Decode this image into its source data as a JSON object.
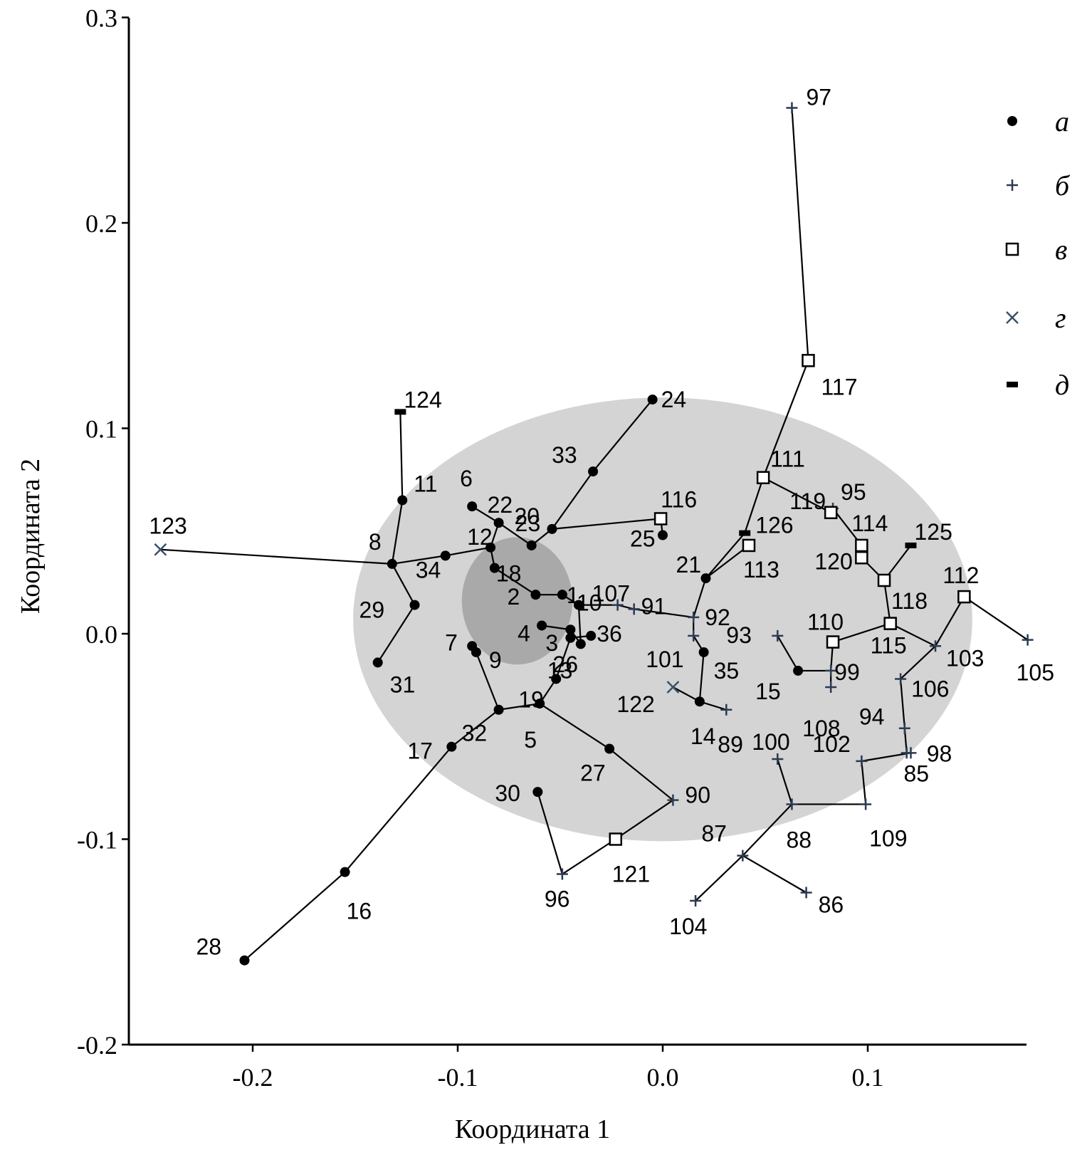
{
  "chart_data": {
    "type": "scatter",
    "xlabel": "Координата 1",
    "ylabel": "Координата 2",
    "xlim": [
      -0.245,
      0.178
    ],
    "ylim": [
      -0.2,
      0.3
    ],
    "x_ticks": [
      "-0.2",
      "-0.1",
      "0.0",
      "0.1"
    ],
    "x_tick_values": [
      -0.2,
      -0.1,
      0.0,
      0.1
    ],
    "y_ticks": [
      "0.3",
      "0.2",
      "0.1",
      "0.0",
      "-0.1",
      "-0.2"
    ],
    "y_tick_values": [
      0.3,
      0.2,
      0.1,
      0.0,
      -0.1,
      -0.2
    ],
    "legend_position": "top-right",
    "legend": [
      {
        "key": "a",
        "label": "а",
        "marker": "dot",
        "color": "#000000"
      },
      {
        "key": "b",
        "label": "б",
        "marker": "plus",
        "color": "#2b3b52"
      },
      {
        "key": "v",
        "label": "в",
        "marker": "square",
        "color": "#000000"
      },
      {
        "key": "g",
        "label": "г",
        "marker": "cross",
        "color": "#3a4f6a"
      },
      {
        "key": "d",
        "label": "д",
        "marker": "dash",
        "color": "#000000"
      }
    ],
    "regions": [
      {
        "shape": "ellipse",
        "cx": 0.0,
        "cy": 0.007,
        "rx": 0.151,
        "ry": 0.108,
        "color": "#d4d4d4"
      },
      {
        "shape": "ellipse",
        "cx": -0.071,
        "cy": 0.016,
        "rx": 0.027,
        "ry": 0.031,
        "color": "#a9a9a9"
      }
    ],
    "points": [
      {
        "id": "1",
        "type": "a",
        "x": -0.049,
        "y": 0.019
      },
      {
        "id": "2",
        "type": "a",
        "x": -0.062,
        "y": 0.019
      },
      {
        "id": "3",
        "type": "a",
        "x": -0.045,
        "y": 0.002
      },
      {
        "id": "4",
        "type": "a",
        "x": -0.059,
        "y": 0.004
      },
      {
        "id": "5",
        "type": "a",
        "x": -0.06,
        "y": -0.034
      },
      {
        "id": "6",
        "type": "a",
        "x": -0.093,
        "y": 0.062
      },
      {
        "id": "7",
        "type": "a",
        "x": -0.093,
        "y": -0.006
      },
      {
        "id": "8",
        "type": "a",
        "x": -0.132,
        "y": 0.034
      },
      {
        "id": "9",
        "type": "a",
        "x": -0.091,
        "y": -0.009
      },
      {
        "id": "10",
        "type": "a",
        "x": -0.041,
        "y": 0.014
      },
      {
        "id": "11",
        "type": "a",
        "x": -0.127,
        "y": 0.065
      },
      {
        "id": "12",
        "type": "a",
        "x": -0.084,
        "y": 0.042
      },
      {
        "id": "13",
        "type": "a",
        "x": -0.04,
        "y": -0.005
      },
      {
        "id": "14",
        "type": "a",
        "x": 0.018,
        "y": -0.033
      },
      {
        "id": "15",
        "type": "a",
        "x": 0.066,
        "y": -0.018
      },
      {
        "id": "16",
        "type": "a",
        "x": -0.155,
        "y": -0.116
      },
      {
        "id": "17",
        "type": "a",
        "x": -0.103,
        "y": -0.055
      },
      {
        "id": "18",
        "type": "a",
        "x": -0.082,
        "y": 0.032
      },
      {
        "id": "19",
        "type": "a",
        "x": -0.052,
        "y": -0.022
      },
      {
        "id": "20",
        "type": "a",
        "x": -0.054,
        "y": 0.051
      },
      {
        "id": "21",
        "type": "a",
        "x": 0.021,
        "y": 0.027
      },
      {
        "id": "22",
        "type": "a",
        "x": -0.08,
        "y": 0.054
      },
      {
        "id": "23",
        "type": "a",
        "x": -0.064,
        "y": 0.043
      },
      {
        "id": "24",
        "type": "a",
        "x": -0.005,
        "y": 0.114
      },
      {
        "id": "25",
        "type": "a",
        "x": 0.0,
        "y": 0.048
      },
      {
        "id": "26",
        "type": "a",
        "x": -0.045,
        "y": -0.002
      },
      {
        "id": "27",
        "type": "a",
        "x": -0.026,
        "y": -0.056
      },
      {
        "id": "28",
        "type": "a",
        "x": -0.204,
        "y": -0.159
      },
      {
        "id": "29",
        "type": "a",
        "x": -0.121,
        "y": 0.014
      },
      {
        "id": "30",
        "type": "a",
        "x": -0.061,
        "y": -0.077
      },
      {
        "id": "31",
        "type": "a",
        "x": -0.139,
        "y": -0.014
      },
      {
        "id": "32",
        "type": "a",
        "x": -0.08,
        "y": -0.037
      },
      {
        "id": "33",
        "type": "a",
        "x": -0.034,
        "y": 0.079
      },
      {
        "id": "34",
        "type": "a",
        "x": -0.106,
        "y": 0.038
      },
      {
        "id": "35",
        "type": "a",
        "x": 0.02,
        "y": -0.009
      },
      {
        "id": "36",
        "type": "a",
        "x": -0.035,
        "y": -0.001
      },
      {
        "id": "85",
        "type": "b",
        "x": 0.121,
        "y": -0.058
      },
      {
        "id": "86",
        "type": "b",
        "x": 0.07,
        "y": -0.126
      },
      {
        "id": "87",
        "type": "b",
        "x": 0.039,
        "y": -0.108
      },
      {
        "id": "88",
        "type": "b",
        "x": 0.063,
        "y": -0.083
      },
      {
        "id": "89",
        "type": "b",
        "x": 0.031,
        "y": -0.037
      },
      {
        "id": "90",
        "type": "b",
        "x": 0.005,
        "y": -0.081
      },
      {
        "id": "91",
        "type": "b",
        "x": -0.014,
        "y": 0.012
      },
      {
        "id": "92",
        "type": "b",
        "x": 0.015,
        "y": 0.008
      },
      {
        "id": "93",
        "type": "b",
        "x": 0.056,
        "y": -0.001
      },
      {
        "id": "94",
        "type": "b",
        "x": 0.118,
        "y": -0.046
      },
      {
        "id": "95",
        "type": "b",
        "x": 0.083,
        "y": 0.061
      },
      {
        "id": "96",
        "type": "b",
        "x": -0.049,
        "y": -0.117
      },
      {
        "id": "97",
        "type": "b",
        "x": 0.063,
        "y": 0.256
      },
      {
        "id": "98",
        "type": "b",
        "x": 0.119,
        "y": -0.058
      },
      {
        "id": "99",
        "type": "b",
        "x": 0.082,
        "y": -0.018
      },
      {
        "id": "100",
        "type": "b",
        "x": 0.056,
        "y": -0.061
      },
      {
        "id": "101",
        "type": "b",
        "x": 0.015,
        "y": -0.001
      },
      {
        "id": "102",
        "type": "b",
        "x": 0.097,
        "y": -0.062
      },
      {
        "id": "103",
        "type": "b",
        "x": 0.133,
        "y": -0.006
      },
      {
        "id": "104",
        "type": "b",
        "x": 0.016,
        "y": -0.13
      },
      {
        "id": "105",
        "type": "b",
        "x": 0.178,
        "y": -0.003
      },
      {
        "id": "106",
        "type": "b",
        "x": 0.116,
        "y": -0.022
      },
      {
        "id": "107",
        "type": "b",
        "x": -0.022,
        "y": 0.014
      },
      {
        "id": "108",
        "type": "b",
        "x": 0.082,
        "y": -0.026
      },
      {
        "id": "109",
        "type": "b",
        "x": 0.099,
        "y": -0.083
      },
      {
        "id": "110",
        "type": "v",
        "x": 0.083,
        "y": -0.004
      },
      {
        "id": "111",
        "type": "v",
        "x": 0.049,
        "y": 0.076
      },
      {
        "id": "112",
        "type": "v",
        "x": 0.147,
        "y": 0.018
      },
      {
        "id": "113",
        "type": "v",
        "x": 0.042,
        "y": 0.043
      },
      {
        "id": "114",
        "type": "v",
        "x": 0.097,
        "y": 0.043
      },
      {
        "id": "115",
        "type": "v",
        "x": 0.111,
        "y": 0.005
      },
      {
        "id": "116",
        "type": "v",
        "x": -0.001,
        "y": 0.056
      },
      {
        "id": "117",
        "type": "v",
        "x": 0.071,
        "y": 0.133
      },
      {
        "id": "118",
        "type": "v",
        "x": 0.108,
        "y": 0.026
      },
      {
        "id": "119",
        "type": "v",
        "x": 0.082,
        "y": 0.059
      },
      {
        "id": "120",
        "type": "v",
        "x": 0.097,
        "y": 0.037
      },
      {
        "id": "121",
        "type": "v",
        "x": -0.023,
        "y": -0.1
      },
      {
        "id": "122",
        "type": "g",
        "x": 0.005,
        "y": -0.026
      },
      {
        "id": "123",
        "type": "g",
        "x": -0.245,
        "y": 0.041
      },
      {
        "id": "124",
        "type": "d",
        "x": -0.128,
        "y": 0.108
      },
      {
        "id": "125",
        "type": "d",
        "x": 0.121,
        "y": 0.043
      },
      {
        "id": "126",
        "type": "d",
        "x": 0.04,
        "y": 0.049
      }
    ],
    "edges": [
      [
        "28",
        "16"
      ],
      [
        "16",
        "17"
      ],
      [
        "17",
        "32"
      ],
      [
        "32",
        "9"
      ],
      [
        "9",
        "7"
      ],
      [
        "32",
        "5"
      ],
      [
        "5",
        "27"
      ],
      [
        "27",
        "90"
      ],
      [
        "90",
        "121"
      ],
      [
        "121",
        "96"
      ],
      [
        "96",
        "30"
      ],
      [
        "5",
        "19"
      ],
      [
        "19",
        "26"
      ],
      [
        "26",
        "3"
      ],
      [
        "26",
        "36"
      ],
      [
        "3",
        "4"
      ],
      [
        "3",
        "13"
      ],
      [
        "13",
        "10"
      ],
      [
        "10",
        "1"
      ],
      [
        "1",
        "2"
      ],
      [
        "2",
        "18"
      ],
      [
        "18",
        "12"
      ],
      [
        "12",
        "22"
      ],
      [
        "22",
        "6"
      ],
      [
        "22",
        "23"
      ],
      [
        "23",
        "20"
      ],
      [
        "20",
        "33"
      ],
      [
        "33",
        "24"
      ],
      [
        "20",
        "116"
      ],
      [
        "116",
        "25"
      ],
      [
        "12",
        "34"
      ],
      [
        "34",
        "8"
      ],
      [
        "8",
        "11"
      ],
      [
        "11",
        "124"
      ],
      [
        "8",
        "123"
      ],
      [
        "8",
        "29"
      ],
      [
        "29",
        "31"
      ],
      [
        "10",
        "107"
      ],
      [
        "107",
        "91"
      ],
      [
        "91",
        "92"
      ],
      [
        "92",
        "101"
      ],
      [
        "101",
        "35"
      ],
      [
        "35",
        "14"
      ],
      [
        "14",
        "89"
      ],
      [
        "14",
        "122"
      ],
      [
        "92",
        "21"
      ],
      [
        "21",
        "113"
      ],
      [
        "21",
        "126"
      ],
      [
        "126",
        "111"
      ],
      [
        "111",
        "117"
      ],
      [
        "117",
        "97"
      ],
      [
        "111",
        "119"
      ],
      [
        "119",
        "95"
      ],
      [
        "95",
        "114"
      ],
      [
        "114",
        "120"
      ],
      [
        "120",
        "118"
      ],
      [
        "118",
        "125"
      ],
      [
        "118",
        "115"
      ],
      [
        "115",
        "110"
      ],
      [
        "110",
        "99"
      ],
      [
        "99",
        "108"
      ],
      [
        "99",
        "15"
      ],
      [
        "15",
        "93"
      ],
      [
        "115",
        "103"
      ],
      [
        "103",
        "112"
      ],
      [
        "112",
        "105"
      ],
      [
        "103",
        "106"
      ],
      [
        "106",
        "94"
      ],
      [
        "94",
        "98"
      ],
      [
        "98",
        "85"
      ],
      [
        "85",
        "102"
      ],
      [
        "102",
        "109"
      ],
      [
        "109",
        "88"
      ],
      [
        "88",
        "100"
      ],
      [
        "88",
        "87"
      ],
      [
        "87",
        "104"
      ],
      [
        "87",
        "86"
      ]
    ]
  }
}
